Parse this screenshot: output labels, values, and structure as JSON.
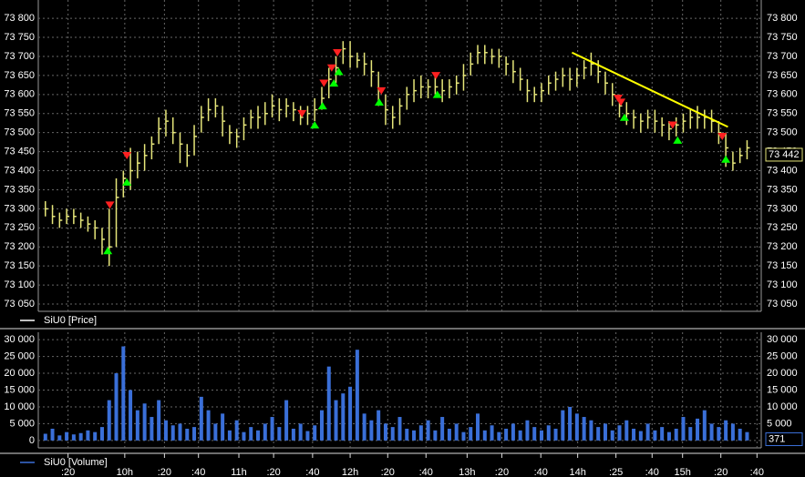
{
  "chart_data": [
    {
      "type": "ohlc",
      "name": "SiU0 [Price]",
      "legend_color": "#ffffff",
      "color": "#e6e67a",
      "xlim": [
        0,
        102
      ],
      "ylim": [
        73031,
        73848
      ],
      "yticks": [
        {
          "value": 73050,
          "label": "73 050"
        },
        {
          "value": 73100,
          "label": "73 100"
        },
        {
          "value": 73150,
          "label": "73 150"
        },
        {
          "value": 73200,
          "label": "73 200"
        },
        {
          "value": 73250,
          "label": "73 250"
        },
        {
          "value": 73300,
          "label": "73 300"
        },
        {
          "value": 73350,
          "label": "73 350"
        },
        {
          "value": 73400,
          "label": "73 400"
        },
        {
          "value": 73450,
          "label": "73 450"
        },
        {
          "value": 73500,
          "label": "73 500"
        },
        {
          "value": 73550,
          "label": "73 550"
        },
        {
          "value": 73600,
          "label": "73 600"
        },
        {
          "value": 73650,
          "label": "73 650"
        },
        {
          "value": 73700,
          "label": "73 700"
        },
        {
          "value": 73750,
          "label": "73 750"
        },
        {
          "value": 73800,
          "label": "73 800"
        }
      ],
      "grid": true,
      "high": [
        73320,
        73310,
        73290,
        73300,
        73300,
        73290,
        73280,
        73270,
        73250,
        73300,
        73380,
        73400,
        73460,
        73450,
        73470,
        73490,
        73540,
        73560,
        73540,
        73500,
        73470,
        73520,
        73570,
        73590,
        73590,
        73570,
        73520,
        73510,
        73540,
        73560,
        73570,
        73580,
        73600,
        73590,
        73590,
        73580,
        73570,
        73570,
        73590,
        73620,
        73670,
        73700,
        73740,
        73740,
        73710,
        73710,
        73690,
        73660,
        73600,
        73570,
        73590,
        73620,
        73640,
        73650,
        73640,
        73650,
        73640,
        73640,
        73650,
        73680,
        73710,
        73730,
        73730,
        73720,
        73720,
        73700,
        73690,
        73670,
        73640,
        73620,
        73630,
        73650,
        73660,
        73670,
        73670,
        73670,
        73690,
        73710,
        73690,
        73660,
        73630,
        73600,
        73580,
        73560,
        73550,
        73560,
        73560,
        73540,
        73530,
        73540,
        73550,
        73560,
        73570,
        73560,
        73560,
        73530,
        73500,
        73450,
        73460,
        73480
      ],
      "low": [
        73280,
        73260,
        73250,
        73260,
        73260,
        73250,
        73240,
        73220,
        73180,
        73150,
        73200,
        73330,
        73350,
        73380,
        73400,
        73430,
        73470,
        73490,
        73470,
        73420,
        73410,
        73440,
        73500,
        73530,
        73540,
        73490,
        73470,
        73460,
        73480,
        73510,
        73510,
        73520,
        73540,
        73530,
        73540,
        73530,
        73520,
        73520,
        73530,
        73560,
        73590,
        73630,
        73680,
        73670,
        73670,
        73650,
        73620,
        73570,
        73520,
        73510,
        73520,
        73560,
        73580,
        73590,
        73590,
        73600,
        73580,
        73590,
        73600,
        73610,
        73650,
        73680,
        73680,
        73680,
        73670,
        73650,
        73630,
        73610,
        73580,
        73580,
        73580,
        73600,
        73610,
        73620,
        73610,
        73620,
        73640,
        73650,
        73630,
        73600,
        73570,
        73540,
        73520,
        73510,
        73500,
        73510,
        73500,
        73490,
        73480,
        73490,
        73500,
        73510,
        73510,
        73510,
        73500,
        73470,
        73410,
        73400,
        73420,
        73430
      ],
      "close": [
        73300,
        73280,
        73270,
        73280,
        73280,
        73270,
        73260,
        73250,
        73220,
        73200,
        73330,
        73380,
        73400,
        73420,
        73440,
        73470,
        73510,
        73530,
        73500,
        73470,
        73440,
        73490,
        73540,
        73560,
        73570,
        73530,
        73500,
        73490,
        73520,
        73540,
        73540,
        73550,
        73570,
        73560,
        73570,
        73560,
        73540,
        73550,
        73560,
        73590,
        73640,
        73670,
        73720,
        73700,
        73690,
        73680,
        73660,
        73610,
        73560,
        73540,
        73570,
        73600,
        73610,
        73620,
        73620,
        73620,
        73610,
        73620,
        73630,
        73650,
        73680,
        73710,
        73710,
        73700,
        73700,
        73680,
        73660,
        73640,
        73610,
        73600,
        73610,
        73630,
        73640,
        73650,
        73640,
        73650,
        73670,
        73680,
        73660,
        73630,
        73600,
        73570,
        73550,
        73540,
        73530,
        73540,
        73530,
        73520,
        73510,
        73520,
        73530,
        73540,
        73540,
        73540,
        73530,
        73500,
        73460,
        73420,
        73440,
        73460
      ],
      "buy_signals": {
        "color": "#00ff00",
        "x": [
          8.8,
          11.5,
          38.0,
          39.1,
          40.7,
          41.4,
          47.1,
          55.3,
          81.7,
          89.2,
          96.0
        ],
        "values": [
          73200,
          73380,
          73530,
          73580,
          73640,
          73670,
          73590,
          73610,
          73550,
          73490,
          73440
        ]
      },
      "sell_signals": {
        "color": "#ff2020",
        "x": [
          9.1,
          11.5,
          36.2,
          39.3,
          40.4,
          41.2,
          47.4,
          55.1,
          80.8,
          81.2,
          88.5,
          95.5
        ],
        "values": [
          73300,
          73430,
          73540,
          73620,
          73660,
          73700,
          73600,
          73640,
          73580,
          73570,
          73510,
          73480
        ]
      },
      "trendline": {
        "color": "#ffff00",
        "x": [
          75.3,
          97.3
        ],
        "values": [
          73710,
          73515
        ]
      },
      "last_value": {
        "value": 73442,
        "label": "73 442",
        "color": "#e6e67a"
      }
    },
    {
      "type": "bar",
      "name": "SiU0 [Volume]",
      "color": "#3a6fd8",
      "xlim": [
        0,
        102
      ],
      "ylim": [
        -2200,
        32200
      ],
      "yticks": [
        0,
        {
          "value": 5000,
          "label": "5 000"
        },
        {
          "value": 10000,
          "label": "10 000"
        },
        {
          "value": 15000,
          "label": "15 000"
        },
        {
          "value": 20000,
          "label": "20 000"
        },
        {
          "value": 25000,
          "label": "25 000"
        },
        {
          "value": 30000,
          "label": "30 000"
        }
      ],
      "grid": true,
      "xticks": [
        {
          "value": 4.2,
          "label": ":20"
        },
        {
          "value": 12.2,
          "label": "10h"
        },
        {
          "value": 17.8,
          "label": ":20"
        },
        {
          "value": 22.6,
          "label": ":40"
        },
        {
          "value": 28.3,
          "label": "11h"
        },
        {
          "value": 33.2,
          "label": ":20"
        },
        {
          "value": 38.7,
          "label": ":40"
        },
        {
          "value": 44.0,
          "label": "12h"
        },
        {
          "value": 49.3,
          "label": ":20"
        },
        {
          "value": 54.7,
          "label": ":40"
        },
        {
          "value": 60.5,
          "label": "13h"
        },
        {
          "value": 65.4,
          "label": ":20"
        },
        {
          "value": 70.9,
          "label": ":40"
        },
        {
          "value": 76.1,
          "label": "14h"
        },
        {
          "value": 81.5,
          "label": ":25"
        },
        {
          "value": 86.6,
          "label": ":40"
        },
        {
          "value": 90.9,
          "label": "15h"
        },
        {
          "value": 96.3,
          "label": ":20"
        },
        {
          "value": 101.4,
          "label": ":40"
        }
      ],
      "values": [
        2000,
        3500,
        1500,
        2500,
        1800,
        2200,
        3000,
        2500,
        4000,
        12000,
        20000,
        28000,
        15000,
        9000,
        11000,
        7000,
        12000,
        6000,
        4500,
        5000,
        3500,
        4000,
        13000,
        9000,
        5000,
        8000,
        3000,
        6000,
        2500,
        4000,
        3000,
        5000,
        7000,
        4000,
        12000,
        3500,
        5000,
        2800,
        4500,
        9000,
        22000,
        12000,
        14000,
        16000,
        27000,
        8000,
        6000,
        9000,
        5000,
        4000,
        7000,
        3500,
        3000,
        4500,
        6000,
        3000,
        7000,
        3500,
        5000,
        2500,
        4000,
        8000,
        3000,
        4500,
        2500,
        3500,
        5000,
        3000,
        6000,
        4000,
        3000,
        4500,
        3500,
        9000,
        10000,
        8000,
        7000,
        6000,
        4000,
        5000,
        3000,
        4500,
        6000,
        3500,
        2800,
        5000,
        3000,
        4000,
        2500,
        3500,
        7000,
        4000,
        6500,
        9000,
        5000,
        4000,
        6000,
        5000,
        3500,
        2500
      ],
      "last_value": {
        "value": 371,
        "color": "#3a6fd8"
      }
    }
  ]
}
